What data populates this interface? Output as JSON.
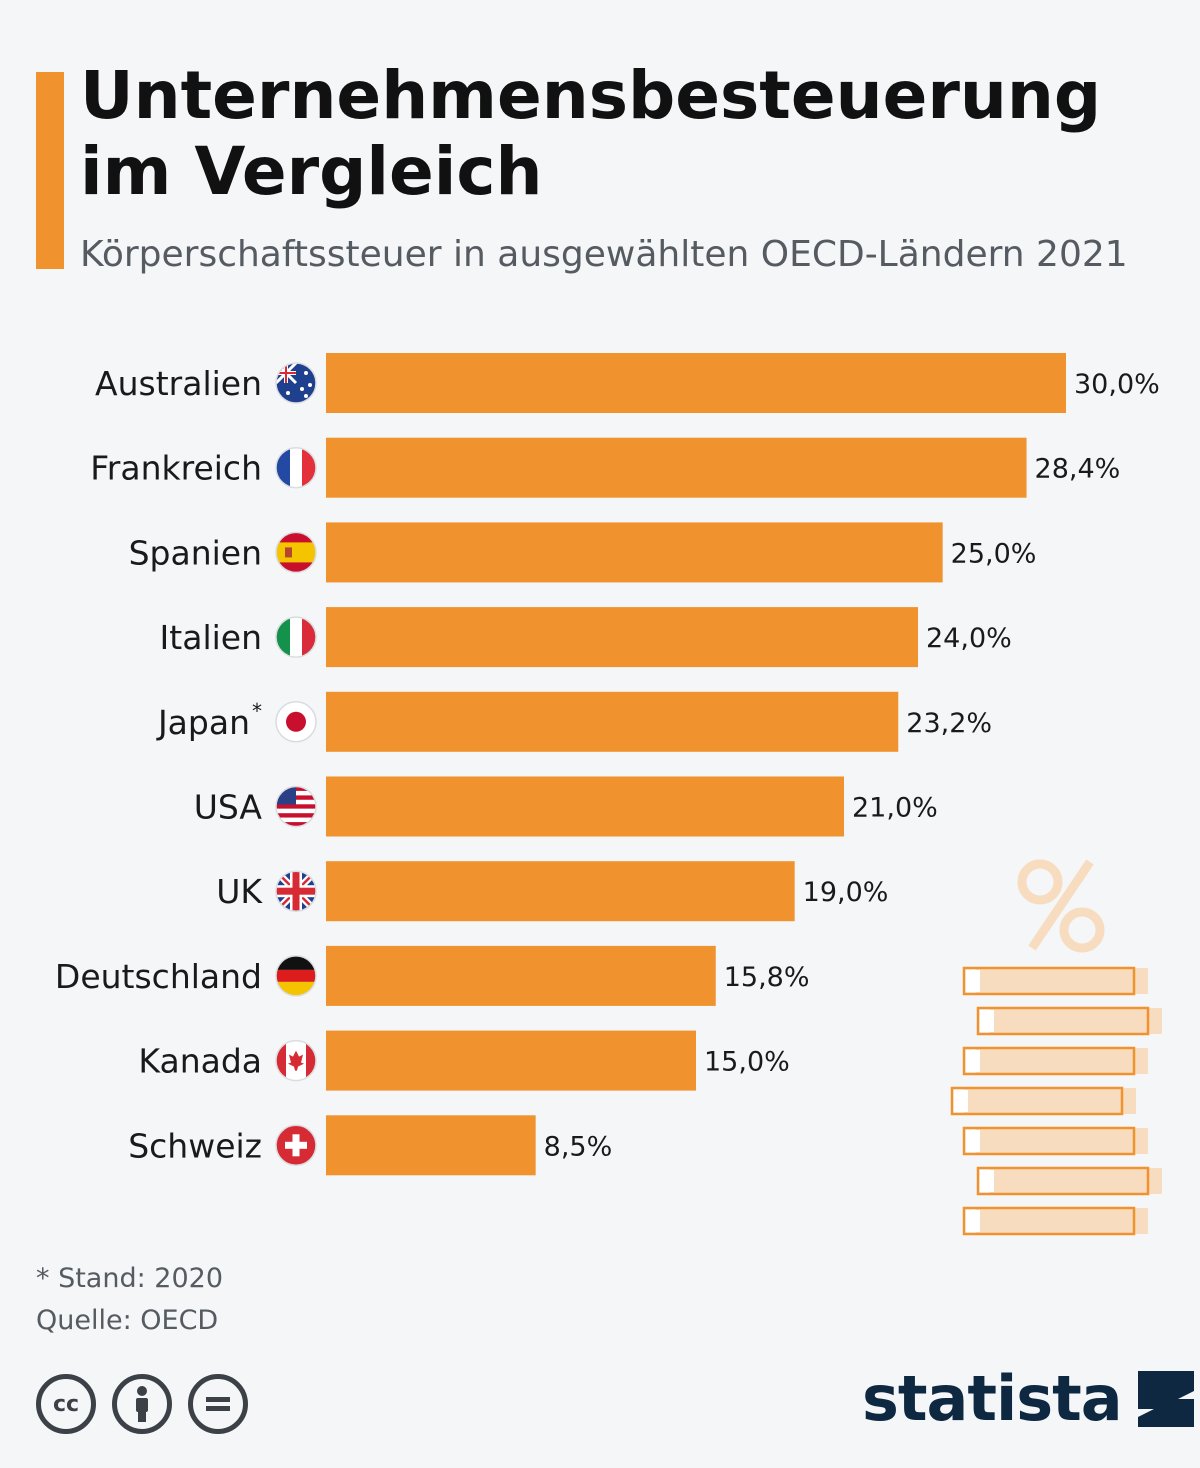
{
  "header": {
    "title": "Unternehmensbesteuerung im Vergleich",
    "subtitle": "Körperschaftssteuer in ausgewählten OECD-Ländern 2021"
  },
  "colors": {
    "accent": "#f0922e",
    "bar": "#f0922e",
    "brand": "#0e2841",
    "muted": "#555b61"
  },
  "chart_data": {
    "type": "bar",
    "orientation": "horizontal",
    "categories": [
      "Australien",
      "Frankreich",
      "Spanien",
      "Italien",
      "Japan",
      "USA",
      "UK",
      "Deutschland",
      "Kanada",
      "Schweiz"
    ],
    "values": [
      30.0,
      28.4,
      25.0,
      24.0,
      23.2,
      21.0,
      19.0,
      15.8,
      15.0,
      8.5
    ],
    "value_labels": [
      "30,0%",
      "28,4%",
      "25,0%",
      "24,0%",
      "23,2%",
      "21,0%",
      "19,0%",
      "15,8%",
      "15,0%",
      "8,5%"
    ],
    "category_markers": [
      "",
      "",
      "",
      "",
      "*",
      "",
      "",
      "",
      "",
      ""
    ],
    "flag_icons": [
      "flag-australia-icon",
      "flag-france-icon",
      "flag-spain-icon",
      "flag-italy-icon",
      "flag-japan-icon",
      "flag-usa-icon",
      "flag-uk-icon",
      "flag-germany-icon",
      "flag-canada-icon",
      "flag-switzerland-icon"
    ],
    "unit": "%",
    "xlim": [
      0,
      30
    ]
  },
  "footer": {
    "note": "* Stand: 2020",
    "source": "Quelle: OECD",
    "license_icons": [
      "cc-icon",
      "by-icon",
      "nd-icon"
    ],
    "brand": "statista"
  }
}
